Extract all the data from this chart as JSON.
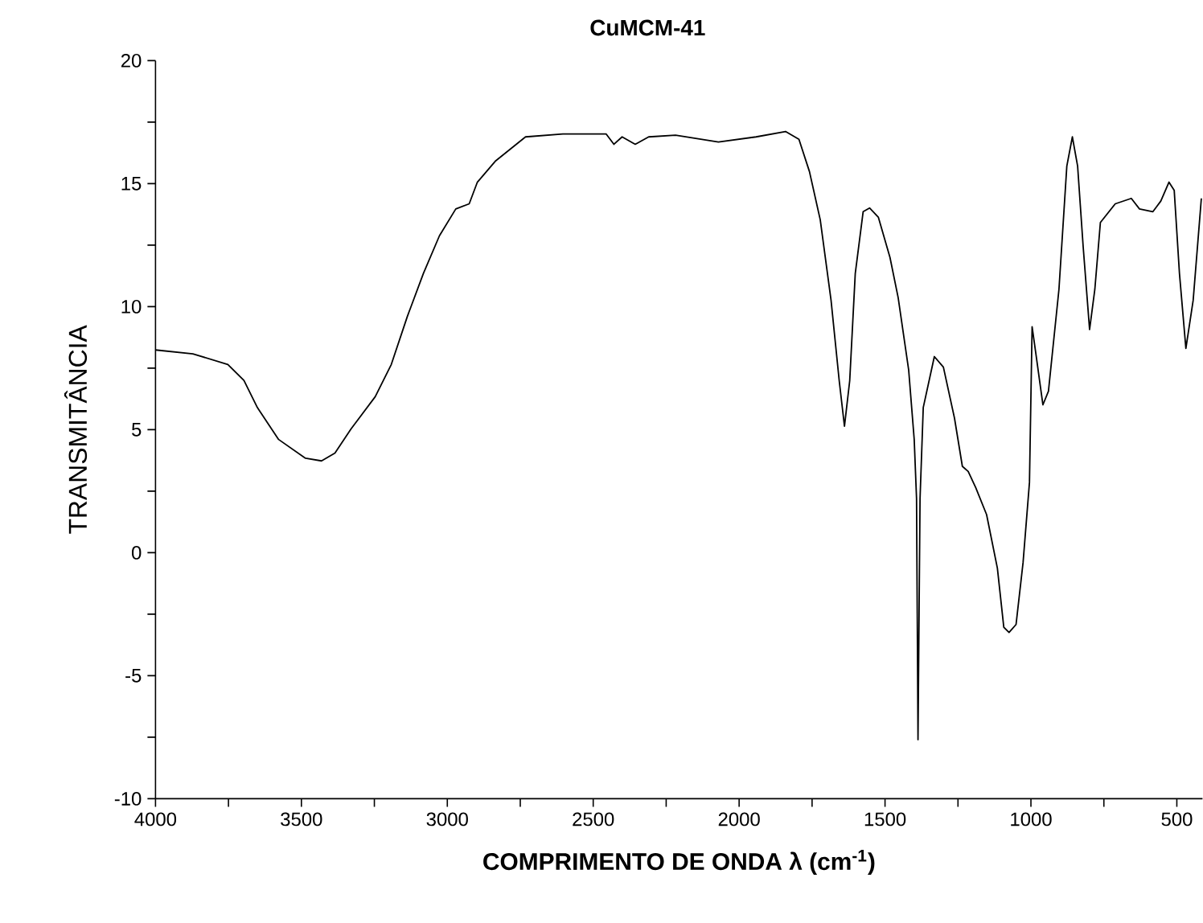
{
  "chart_data": {
    "type": "line",
    "title": "CuMCM-41",
    "xlabel": "COMPRIMENTO DE ONDA λ (cm$^{-1}$)",
    "ylabel": "TRANSMITÂNCIA",
    "xlim": [
      4000,
      412
    ],
    "ylim": [
      -10,
      20
    ],
    "xticks": [
      4000,
      {
        "value": 3750,
        "label": null
      },
      3500,
      {
        "value": 3250,
        "label": null
      },
      3000,
      {
        "value": 2750,
        "label": null
      },
      2500,
      {
        "value": 2250,
        "label": null
      },
      2000,
      {
        "value": 1750,
        "label": null
      },
      1500,
      {
        "value": 1250,
        "label": null
      },
      1000,
      {
        "value": 750,
        "label": null
      },
      500
    ],
    "yticks": [
      -10,
      {
        "value": -7.5,
        "label": null
      },
      -5,
      {
        "value": -2.5,
        "label": null
      },
      0,
      {
        "value": 2.5,
        "label": null
      },
      5,
      {
        "value": 7.5,
        "label": null
      },
      10,
      {
        "value": 12.5,
        "label": null
      },
      15,
      {
        "value": 17.5,
        "label": null
      },
      20
    ],
    "x": [
      4000,
      3872,
      3752,
      3697,
      3651,
      3578,
      3486,
      3431,
      3385,
      3330,
      3247,
      3192,
      3137,
      3082,
      3027,
      2971,
      2925,
      2897,
      2834,
      2732,
      2604,
      2456,
      2429,
      2401,
      2356,
      2310,
      2218,
      2071,
      1942,
      1841,
      1795,
      1759,
      1722,
      1685,
      1657,
      1639,
      1621,
      1602,
      1575,
      1553,
      1523,
      1483,
      1455,
      1419,
      1400,
      1392,
      1387,
      1380,
      1369,
      1331,
      1300,
      1262,
      1235,
      1215,
      1189,
      1152,
      1115,
      1093,
      1075,
      1051,
      1027,
      1005,
      996,
      983,
      959,
      940,
      904,
      877,
      858,
      840,
      821,
      799,
      781,
      762,
      711,
      656,
      628,
      582,
      555,
      527,
      509,
      491,
      469,
      444,
      416
    ],
    "series": [
      {
        "color": "#000000",
        "values": [
          8.24,
          8.08,
          7.65,
          7.0,
          5.9,
          4.6,
          3.84,
          3.73,
          4.05,
          5.03,
          6.34,
          7.65,
          9.6,
          11.35,
          12.88,
          13.97,
          14.18,
          15.06,
          15.93,
          16.9,
          17.02,
          17.02,
          16.6,
          16.9,
          16.6,
          16.9,
          16.97,
          16.69,
          16.9,
          17.12,
          16.8,
          15.49,
          13.53,
          10.26,
          6.99,
          5.14,
          6.99,
          11.35,
          13.86,
          14.01,
          13.64,
          12.0,
          10.37,
          7.43,
          4.6,
          2.2,
          -7.6,
          2.2,
          5.9,
          7.97,
          7.54,
          5.47,
          3.51,
          3.3,
          2.64,
          1.55,
          -0.63,
          -3.03,
          -3.24,
          -2.92,
          -0.41,
          2.86,
          9.18,
          8.08,
          6.01,
          6.56,
          10.7,
          15.71,
          16.9,
          15.71,
          12.44,
          9.07,
          10.7,
          13.42,
          14.18,
          14.4,
          13.97,
          13.86,
          14.29,
          15.06,
          14.73,
          11.35,
          8.3,
          10.26,
          14.4
        ]
      }
    ]
  }
}
